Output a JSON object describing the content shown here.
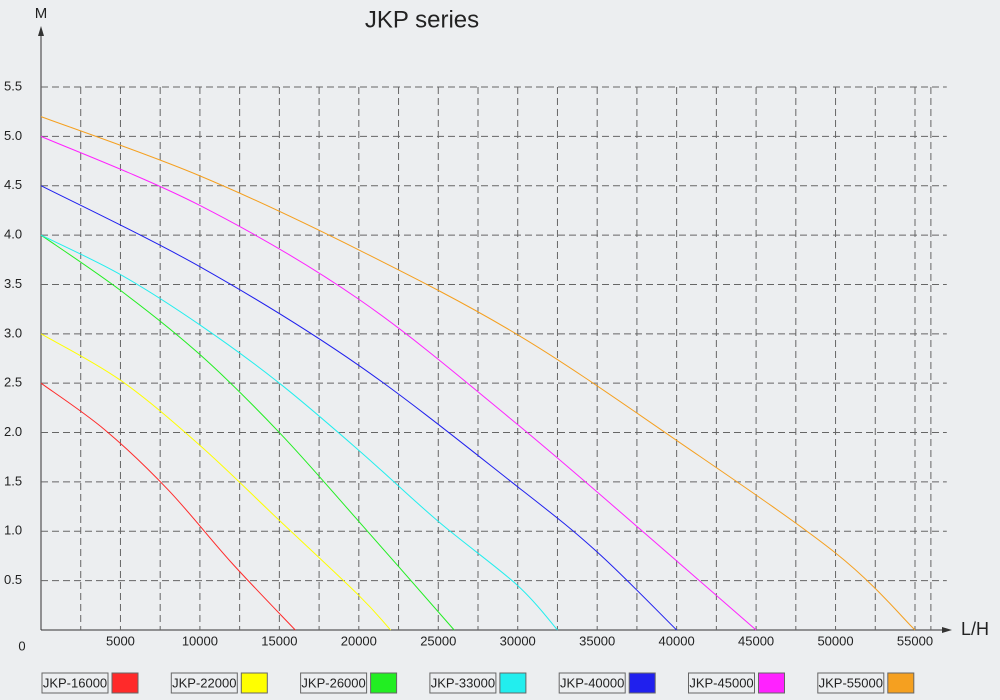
{
  "chart_data": {
    "type": "line",
    "title": "JKP series",
    "x_label": "L/H",
    "y_label": "M",
    "xlim": [
      0,
      57000
    ],
    "ylim": [
      0,
      5.5
    ],
    "xticks": [
      0,
      5000,
      10000,
      15000,
      20000,
      25000,
      30000,
      35000,
      40000,
      45000,
      50000,
      55000
    ],
    "yticks": [
      {
        "value": 0.5,
        "label": "0.5"
      },
      {
        "value": 1,
        "label": "1.0"
      },
      {
        "value": 1.5,
        "label": "1.5"
      },
      {
        "value": 2,
        "label": "2.0"
      },
      {
        "value": 2.5,
        "label": "2.5"
      },
      {
        "value": 3,
        "label": "3.0"
      },
      {
        "value": 3.5,
        "label": "3.5"
      },
      {
        "value": 4,
        "label": "4.0"
      },
      {
        "value": 4.5,
        "label": "4.5"
      },
      {
        "value": 5,
        "label": "5.0"
      },
      {
        "value": 5.5,
        "label": "5.5"
      }
    ],
    "grid": true,
    "series": [
      {
        "name": "JKP-16000",
        "color": "#ff2a2a",
        "x": [
          0,
          4000,
          8000,
          12000,
          16000
        ],
        "values": [
          2.5,
          2.03,
          1.42,
          0.68,
          0
        ]
      },
      {
        "name": "JKP-22000",
        "color": "#ffff00",
        "x": [
          0,
          5000,
          10000,
          15000,
          20000,
          22000
        ],
        "values": [
          3.0,
          2.53,
          1.87,
          1.11,
          0.35,
          0
        ]
      },
      {
        "name": "JKP-26000",
        "color": "#22ee22",
        "x": [
          0,
          5000,
          10000,
          15000,
          20000,
          26000
        ],
        "values": [
          4.0,
          3.44,
          2.79,
          2.0,
          1.1,
          0
        ]
      },
      {
        "name": "JKP-33000",
        "color": "#22eeee",
        "x": [
          0,
          5000,
          10000,
          15000,
          20000,
          25000,
          30000,
          32500
        ],
        "values": [
          4.0,
          3.6,
          3.09,
          2.5,
          1.82,
          1.1,
          0.45,
          0
        ]
      },
      {
        "name": "JKP-40000",
        "color": "#2020ee",
        "x": [
          0,
          10000,
          20000,
          30000,
          35000,
          40000
        ],
        "values": [
          4.5,
          3.68,
          2.68,
          1.45,
          0.79,
          0
        ]
      },
      {
        "name": "JKP-45000",
        "color": "#ff22ff",
        "x": [
          0,
          10000,
          20000,
          30000,
          40000,
          45000
        ],
        "values": [
          5.0,
          4.3,
          3.35,
          2.08,
          0.7,
          0
        ]
      },
      {
        "name": "JKP-55000",
        "color": "#f5a020",
        "x": [
          0,
          10000,
          20000,
          30000,
          40000,
          50000,
          55000
        ],
        "values": [
          5.2,
          4.6,
          3.85,
          2.99,
          1.92,
          0.78,
          0
        ]
      }
    ]
  }
}
